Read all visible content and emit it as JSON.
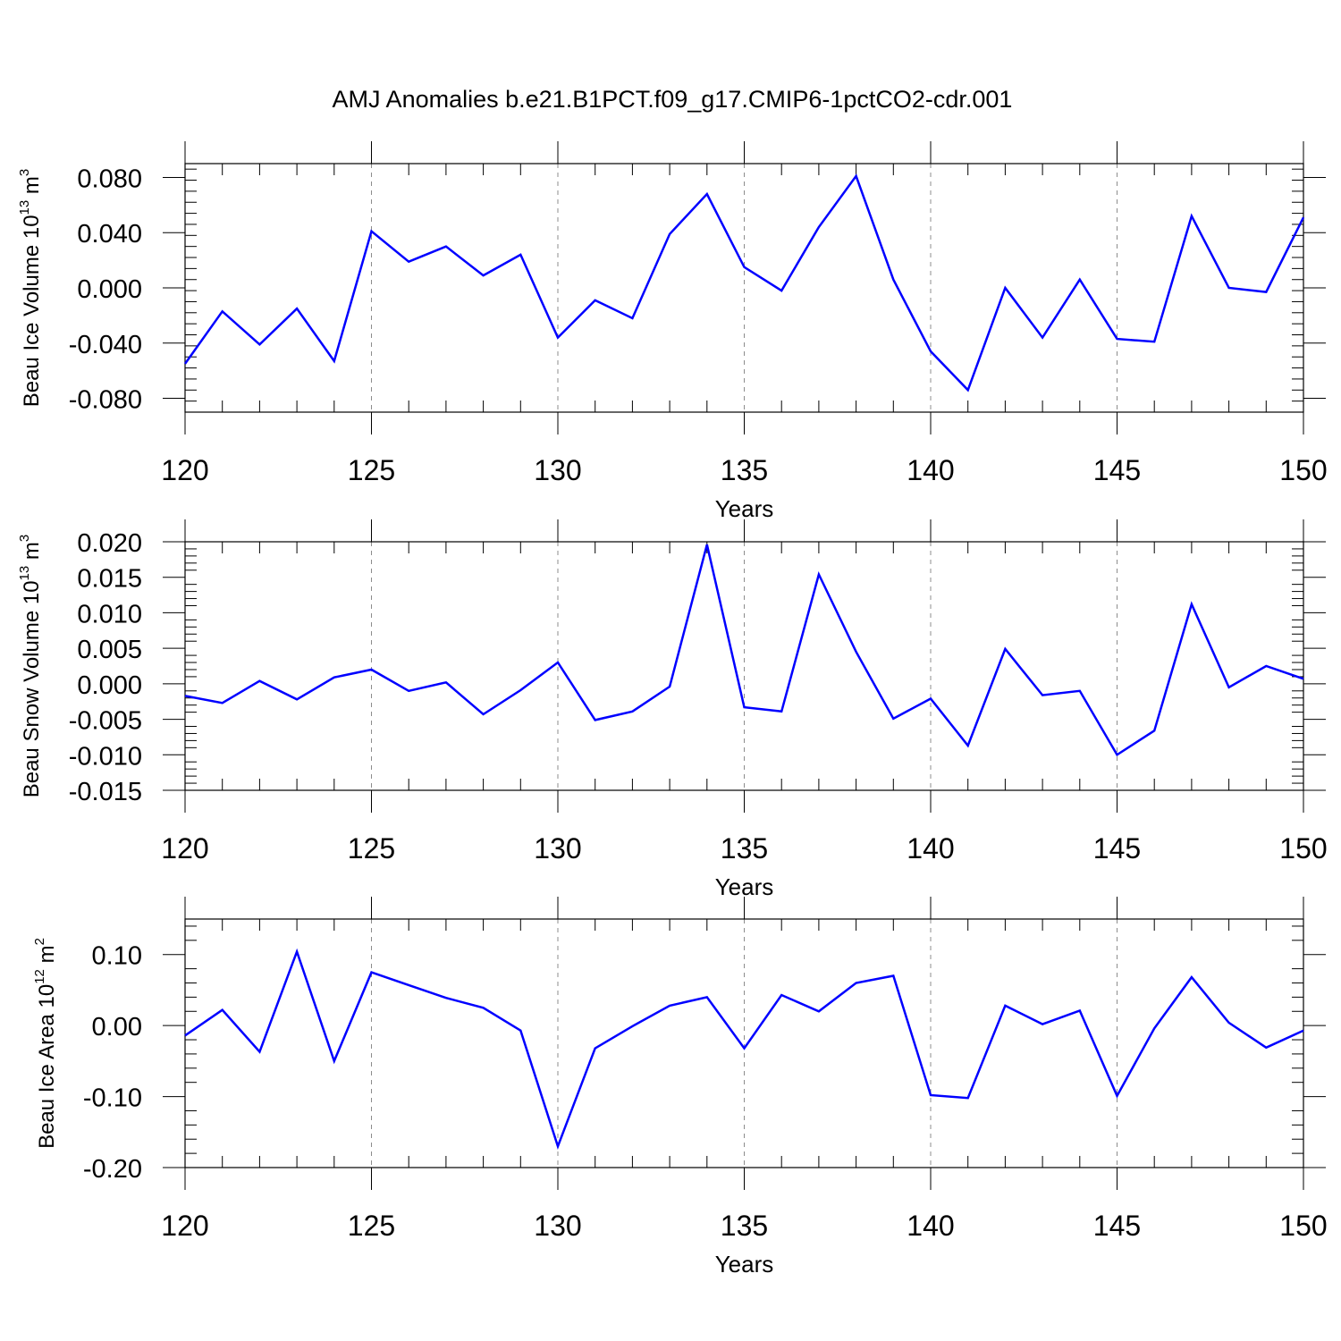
{
  "title": "AMJ Anomalies b.e21.B1PCT.f09_g17.CMIP6-1pctCO2-cdr.001",
  "colors": {
    "series": "#0000ff",
    "frame": "#000000",
    "grid": "#8c8c8c"
  },
  "chart_data": [
    {
      "type": "line",
      "ylabel": {
        "text": "Beau Ice Volume 10",
        "exp": "13",
        "unit": " m",
        "unit_exp": "3"
      },
      "xlabel": "Years",
      "xlim": [
        120,
        150
      ],
      "ylim": [
        -0.09,
        0.09
      ],
      "x_major_ticks": [
        120,
        125,
        130,
        135,
        140,
        145,
        150
      ],
      "x_tick_labels": [
        "120",
        "125",
        "130",
        "135",
        "140",
        "145",
        "150"
      ],
      "x_minor_step": 1,
      "y_major_ticks": [
        -0.08,
        -0.04,
        0.0,
        0.04,
        0.08
      ],
      "y_tick_labels": [
        "-0.080",
        "-0.040",
        "0.000",
        "0.040",
        "0.080"
      ],
      "y_minor_step": 0.008,
      "grid": "vertical dashed at major x ticks",
      "x": [
        120,
        121,
        122,
        123,
        124,
        125,
        126,
        127,
        128,
        129,
        130,
        131,
        132,
        133,
        134,
        135,
        136,
        137,
        138,
        139,
        140,
        141,
        142,
        143,
        144,
        145,
        146,
        147,
        148,
        149,
        150
      ],
      "values": [
        -0.055,
        -0.017,
        -0.041,
        -0.015,
        -0.053,
        0.041,
        0.019,
        0.03,
        0.009,
        0.024,
        -0.036,
        -0.009,
        -0.022,
        0.039,
        0.068,
        0.015,
        -0.002,
        0.044,
        0.081,
        0.006,
        -0.046,
        -0.074,
        0.0,
        -0.036,
        0.006,
        -0.037,
        -0.039,
        0.052,
        0.0,
        -0.003,
        0.051
      ]
    },
    {
      "type": "line",
      "ylabel": {
        "text": "Beau Snow Volume 10",
        "exp": "13",
        "unit": " m",
        "unit_exp": "3"
      },
      "xlabel": "Years",
      "xlim": [
        120,
        150
      ],
      "ylim": [
        -0.015,
        0.02
      ],
      "x_major_ticks": [
        120,
        125,
        130,
        135,
        140,
        145,
        150
      ],
      "x_tick_labels": [
        "120",
        "125",
        "130",
        "135",
        "140",
        "145",
        "150"
      ],
      "x_minor_step": 1,
      "y_major_ticks": [
        -0.015,
        -0.01,
        -0.005,
        0.0,
        0.005,
        0.01,
        0.015,
        0.02
      ],
      "y_tick_labels": [
        "-0.015",
        "-0.010",
        "-0.005",
        "0.000",
        "0.005",
        "0.010",
        "0.015",
        "0.020"
      ],
      "y_minor_step": 0.001,
      "grid": "vertical dashed at major x ticks",
      "x": [
        120,
        121,
        122,
        123,
        124,
        125,
        126,
        127,
        128,
        129,
        130,
        131,
        132,
        133,
        134,
        135,
        136,
        137,
        138,
        139,
        140,
        141,
        142,
        143,
        144,
        145,
        146,
        147,
        148,
        149,
        150
      ],
      "values": [
        -0.0017,
        -0.0027,
        0.0004,
        -0.0022,
        0.0009,
        0.002,
        -0.001,
        0.0002,
        -0.0043,
        -0.0009,
        0.003,
        -0.0051,
        -0.0039,
        -0.0004,
        0.0196,
        -0.0033,
        -0.0039,
        0.0154,
        0.0045,
        -0.0049,
        -0.0021,
        -0.0087,
        0.0049,
        -0.0016,
        -0.001,
        -0.01,
        -0.0066,
        0.0112,
        -0.0005,
        0.0025,
        0.0007
      ]
    },
    {
      "type": "line",
      "ylabel": {
        "text": "Beau Ice Area 10",
        "exp": "12",
        "unit": " m",
        "unit_exp": "2"
      },
      "xlabel": "Years",
      "xlim": [
        120,
        150
      ],
      "ylim": [
        -0.2,
        0.15
      ],
      "x_major_ticks": [
        120,
        125,
        130,
        135,
        140,
        145,
        150
      ],
      "x_tick_labels": [
        "120",
        "125",
        "130",
        "135",
        "140",
        "145",
        "150"
      ],
      "x_minor_step": 1,
      "y_major_ticks": [
        -0.2,
        -0.1,
        0.0,
        0.1
      ],
      "y_tick_labels": [
        "-0.20",
        "-0.10",
        "0.00",
        "0.10"
      ],
      "y_minor_step": 0.02,
      "grid": "vertical dashed at major x ticks",
      "x": [
        120,
        121,
        122,
        123,
        124,
        125,
        126,
        127,
        128,
        129,
        130,
        131,
        132,
        133,
        134,
        135,
        136,
        137,
        138,
        139,
        140,
        141,
        142,
        143,
        144,
        145,
        146,
        147,
        148,
        149,
        150
      ],
      "values": [
        -0.014,
        0.022,
        -0.037,
        0.104,
        -0.05,
        0.075,
        0.057,
        0.039,
        0.025,
        -0.007,
        -0.17,
        -0.032,
        -0.001,
        0.028,
        0.04,
        -0.032,
        0.043,
        0.02,
        0.06,
        0.07,
        -0.098,
        -0.102,
        0.028,
        0.002,
        0.021,
        -0.099,
        -0.004,
        0.068,
        0.004,
        -0.031,
        -0.007
      ]
    }
  ]
}
